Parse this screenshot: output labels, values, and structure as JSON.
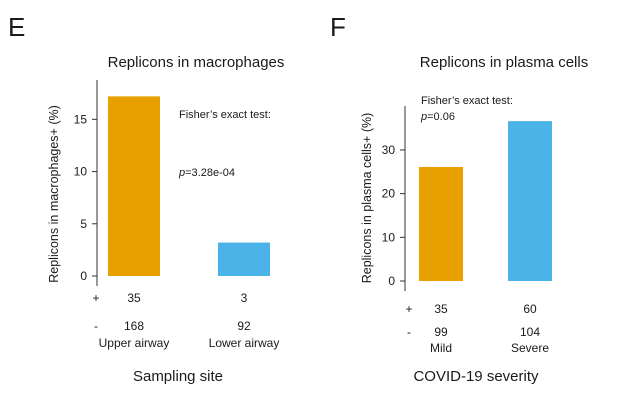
{
  "chart_data": [
    {
      "panel": "E",
      "type": "bar",
      "title": "Replicons in macrophages",
      "ylabel": "Replicons in macrophages+ (%)",
      "xlabel": "Sampling site",
      "categories": [
        "Upper airway",
        "Lower airway"
      ],
      "values": [
        17.2,
        3.2
      ],
      "colors": [
        "#E8A000",
        "#4BB3E8"
      ],
      "yticks": [
        "0",
        "5",
        "10",
        "15"
      ],
      "ylim": [
        0,
        18
      ],
      "annotation_test": "Fisher’s exact test:",
      "annotation_p_italic": "p",
      "annotation_p_value": "=3.28e-04",
      "count_rows": [
        {
          "sign": "+",
          "counts": [
            "35",
            "3"
          ]
        },
        {
          "sign": "-",
          "counts": [
            "168",
            "92"
          ]
        }
      ]
    },
    {
      "panel": "F",
      "type": "bar",
      "title": "Replicons in plasma cells",
      "ylabel": "Replicons in plasma cells+ (%)",
      "xlabel": "COVID-19 severity",
      "categories": [
        "Mild",
        "Severe"
      ],
      "values": [
        26.1,
        36.6
      ],
      "colors": [
        "#E8A000",
        "#4BB3E8"
      ],
      "yticks": [
        "0",
        "10",
        "20",
        "30"
      ],
      "ylim": [
        0,
        38
      ],
      "annotation_test": "Fisher’s exact test:",
      "annotation_p_italic": "p",
      "annotation_p_value": "=0.06",
      "count_rows": [
        {
          "sign": "+",
          "counts": [
            "35",
            "60"
          ]
        },
        {
          "sign": "-",
          "counts": [
            "99",
            "104"
          ]
        }
      ]
    }
  ]
}
